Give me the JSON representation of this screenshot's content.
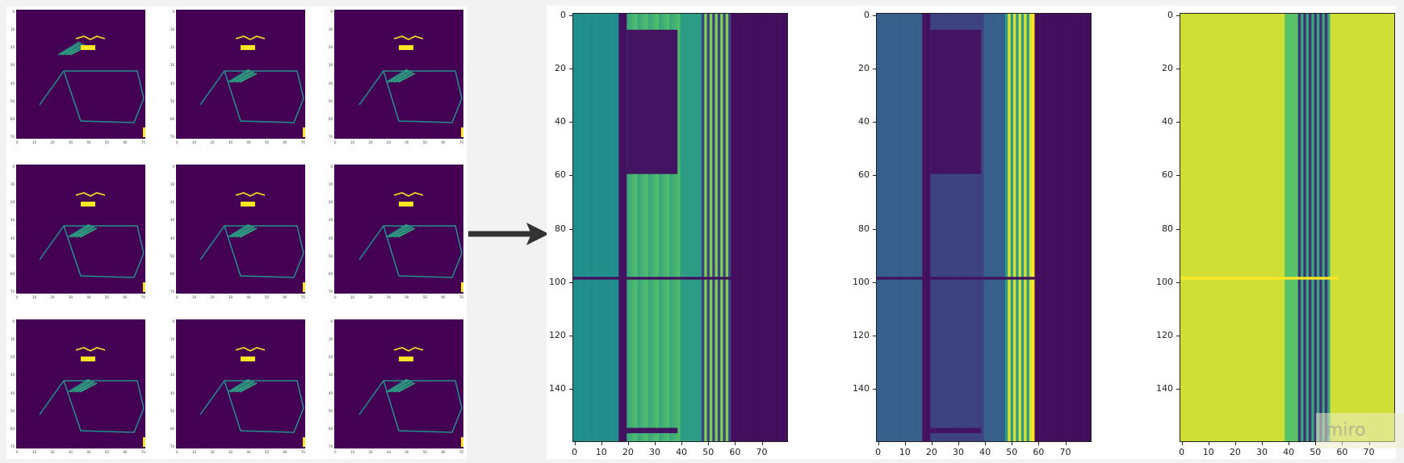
{
  "thumbnails": {
    "count": 9,
    "x_ticks": [
      "0",
      "10",
      "20",
      "30",
      "40",
      "50",
      "60",
      "70"
    ],
    "y_ticks": [
      "0",
      "10",
      "20",
      "30",
      "40",
      "50",
      "60",
      "70"
    ]
  },
  "heatmaps": [
    {
      "name": "heatmap-1",
      "x_ticks": [
        "0",
        "10",
        "20",
        "30",
        "40",
        "50",
        "60",
        "70"
      ],
      "y_ticks": [
        "0",
        "20",
        "40",
        "60",
        "80",
        "100",
        "120",
        "140"
      ]
    },
    {
      "name": "heatmap-2",
      "x_ticks": [
        "0",
        "10",
        "20",
        "30",
        "40",
        "50",
        "60",
        "70"
      ],
      "y_ticks": [
        "0",
        "20",
        "40",
        "60",
        "80",
        "100",
        "120",
        "140"
      ]
    },
    {
      "name": "heatmap-3",
      "x_ticks": [
        "0",
        "10",
        "20",
        "30",
        "40",
        "50",
        "60",
        "70"
      ],
      "y_ticks": [
        "0",
        "20",
        "40",
        "60",
        "80",
        "100",
        "120",
        "140"
      ]
    }
  ],
  "watermark": "miro",
  "colors": {
    "viridis_dark": "#440154",
    "viridis_blue": "#31688e",
    "viridis_teal": "#21918c",
    "viridis_green": "#35b779",
    "viridis_yellow": "#fde725",
    "arrow": "#333333"
  }
}
